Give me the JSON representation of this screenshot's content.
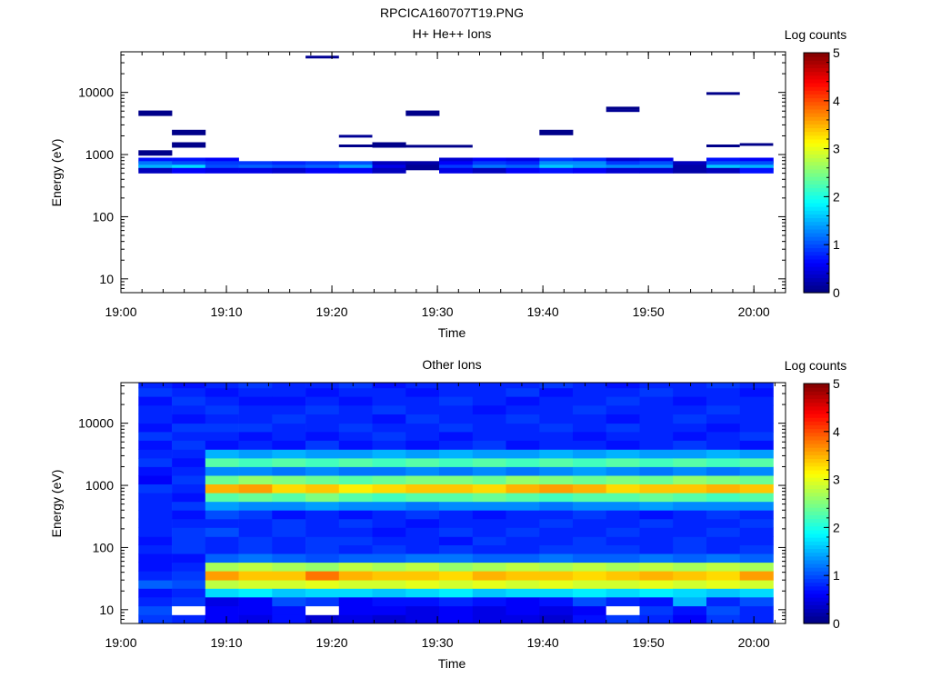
{
  "figure_title": "RPCICA160707T19.PNG",
  "chart_data": [
    {
      "type": "heatmap",
      "title": "H+ He++ Ions",
      "xlabel": "Time",
      "ylabel": "Energy (eV)",
      "x_tick_labels": [
        "19:00",
        "19:10",
        "19:20",
        "19:30",
        "19:40",
        "19:50",
        "20:00"
      ],
      "x_range": [
        "19:00",
        "20:03"
      ],
      "y_scale": "log",
      "y_tick_labels": [
        "10",
        "100",
        "1000",
        "10000"
      ],
      "y_range": [
        6,
        45000
      ],
      "colorbar": {
        "label": "Log counts",
        "range": [
          0,
          5
        ],
        "tick_labels": [
          "0",
          "1",
          "2",
          "3",
          "4",
          "5"
        ]
      },
      "time_bins": [
        "19:01:40",
        "19:04:50",
        "19:08:00",
        "19:11:10",
        "19:14:20",
        "19:17:30",
        "19:20:40",
        "19:23:50",
        "19:27:00",
        "19:30:10",
        "19:33:20",
        "19:36:30",
        "19:39:40",
        "19:42:50",
        "19:46:00",
        "19:49:10",
        "19:52:20",
        "19:55:30",
        "19:58:40"
      ],
      "rows": [
        {
          "e": 4700,
          "v": [
            0.05,
            null,
            null,
            null,
            null,
            null,
            null,
            null,
            0.05,
            null,
            null,
            null,
            null,
            null,
            null,
            null,
            null,
            null,
            null
          ]
        },
        {
          "e": 2300,
          "v": [
            null,
            0.05,
            null,
            null,
            null,
            null,
            null,
            null,
            null,
            null,
            null,
            null,
            0.05,
            null,
            null,
            null,
            null,
            null,
            null
          ]
        },
        {
          "e": 1450,
          "v": [
            null,
            0.05,
            null,
            null,
            null,
            null,
            null,
            0.05,
            null,
            null,
            null,
            null,
            null,
            null,
            null,
            null,
            null,
            null,
            null
          ]
        },
        {
          "e": 1080,
          "v": [
            0.05,
            null,
            null,
            null,
            null,
            null,
            null,
            null,
            null,
            null,
            null,
            null,
            null,
            null,
            null,
            null,
            null,
            null,
            null
          ]
        },
        {
          "e": 820,
          "v": [
            0.7,
            0.7,
            0.6,
            null,
            null,
            null,
            null,
            null,
            null,
            0.4,
            0.6,
            0.5,
            0.9,
            0.8,
            0.4,
            0.5,
            null,
            0.7,
            0.6
          ]
        },
        {
          "e": 720,
          "v": [
            1.2,
            1.0,
            0.9,
            0.9,
            0.8,
            0.9,
            1.0,
            0.3,
            0.2,
            0.6,
            0.9,
            0.8,
            1.3,
            1.3,
            0.9,
            1.0,
            0.3,
            1.0,
            1.0
          ]
        },
        {
          "e": 630,
          "v": [
            1.5,
            1.7,
            1.0,
            1.1,
            1.0,
            1.1,
            1.4,
            0.5,
            0.1,
            0.9,
            1.2,
            1.1,
            1.6,
            1.4,
            1.3,
            1.3,
            0.2,
            1.6,
            1.5
          ]
        },
        {
          "e": 560,
          "v": [
            0.3,
            0.6,
            0.5,
            0.5,
            0.4,
            0.6,
            0.6,
            0.3,
            null,
            0.5,
            0.3,
            0.6,
            0.7,
            0.6,
            0.4,
            0.4,
            0.2,
            0.3,
            0.7
          ]
        }
      ],
      "lines": [
        {
          "t0": "19:17:30",
          "t1": "19:20:40",
          "e": 37000,
          "v": 0.1
        },
        {
          "t0": "19:20:40",
          "t1": "19:23:50",
          "e": 1970,
          "v": 0.1
        },
        {
          "t0": "19:20:40",
          "t1": "19:23:50",
          "e": 1380,
          "v": 0.05
        },
        {
          "t0": "19:27:00",
          "t1": "19:33:20",
          "e": 1360,
          "v": 0.05
        },
        {
          "t0": "19:46:00",
          "t1": "19:49:10",
          "e": 5600,
          "v": 0.05
        },
        {
          "t0": "19:46:00",
          "t1": "19:49:10",
          "e": 5100,
          "v": 0.1
        },
        {
          "t0": "19:55:30",
          "t1": "19:58:40",
          "e": 9600,
          "v": 0.05
        },
        {
          "t0": "19:55:30",
          "t1": "19:58:40",
          "e": 1380,
          "v": 0.05
        },
        {
          "t0": "19:58:40",
          "t1": "20:01:50",
          "e": 1450,
          "v": 0.05
        }
      ]
    },
    {
      "type": "heatmap",
      "title": "Other Ions",
      "xlabel": "Time",
      "ylabel": "Energy (eV)",
      "x_tick_labels": [
        "19:00",
        "19:10",
        "19:20",
        "19:30",
        "19:40",
        "19:50",
        "20:00"
      ],
      "x_range": [
        "19:00",
        "20:03"
      ],
      "y_scale": "log",
      "y_tick_labels": [
        "10",
        "100",
        "1000",
        "10000"
      ],
      "y_range": [
        6,
        45000
      ],
      "colorbar": {
        "label": "Log counts",
        "range": [
          0,
          5
        ],
        "tick_labels": [
          "0",
          "1",
          "2",
          "3",
          "4",
          "5"
        ]
      },
      "time_bins": [
        "19:01:40",
        "19:04:50",
        "19:08:00",
        "19:11:10",
        "19:14:20",
        "19:17:30",
        "19:20:40",
        "19:23:50",
        "19:27:00",
        "19:30:10",
        "19:33:20",
        "19:36:30",
        "19:39:40",
        "19:42:50",
        "19:46:00",
        "19:49:10",
        "19:52:20",
        "19:55:30",
        "19:58:40"
      ],
      "energy_band_edges": [
        6,
        8.3,
        11.5,
        16,
        22,
        30,
        42,
        58,
        80,
        110,
        150,
        210,
        290,
        400,
        550,
        760,
        1050,
        1450,
        2000,
        2750,
        3800,
        5300,
        7300,
        10000,
        14000,
        19500,
        27000,
        37000,
        45000
      ],
      "matrix": [
        [
          0.9,
          1.0,
          0.8,
          0.7,
          1.1,
          0.8,
          0.7,
          0.7,
          0.8,
          0.7,
          0.8,
          0.8,
          0.8,
          0.8,
          0.8,
          0.9,
          0.6,
          0.7,
          0.9,
          0.8,
          0.7,
          0.9,
          0.7,
          0.8,
          0.8,
          0.7,
          0.9,
          0.8
        ],
        [
          0.8,
          null,
          0.9,
          0.8,
          1.0,
          0.9,
          0.8,
          0.7,
          0.9,
          0.9,
          0.9,
          0.8,
          0.7,
          0.9,
          0.7,
          0.8,
          0.9,
          0.8,
          0.7,
          0.8,
          0.9,
          0.8,
          0.9,
          0.7,
          0.8,
          0.9,
          0.8,
          0.7
        ],
        [
          0.6,
          0.6,
          0.5,
          1.7,
          2.8,
          3.6,
          2.7,
          1.1,
          0.8,
          0.8,
          1.0,
          0.8,
          1.0,
          1.4,
          2.3,
          3.5,
          2.4,
          1.3,
          2.3,
          1.5,
          0.7,
          0.8,
          0.9,
          0.8,
          0.9,
          0.8,
          0.7,
          0.8
        ],
        [
          0.5,
          0.6,
          0.6,
          1.8,
          2.9,
          3.4,
          2.8,
          1.2,
          0.9,
          0.9,
          0.8,
          0.8,
          0.9,
          1.3,
          2.4,
          3.6,
          2.6,
          1.3,
          2.2,
          1.4,
          0.8,
          0.7,
          0.9,
          0.8,
          0.8,
          0.7,
          0.8,
          0.9
        ],
        [
          0.7,
          0.7,
          1.0,
          1.6,
          2.9,
          3.4,
          2.7,
          1.1,
          0.8,
          0.8,
          0.9,
          0.9,
          0.7,
          1.3,
          2.3,
          3.3,
          2.5,
          1.2,
          2.3,
          1.5,
          0.7,
          0.8,
          0.8,
          0.9,
          0.8,
          0.7,
          0.8,
          0.8
        ],
        [
          0.4,
          null,
          0.9,
          1.7,
          3.0,
          3.8,
          2.6,
          1.0,
          0.9,
          0.9,
          0.8,
          0.8,
          0.8,
          1.4,
          2.5,
          3.4,
          2.4,
          1.3,
          2.2,
          1.4,
          0.9,
          0.7,
          0.8,
          0.8,
          0.9,
          0.8,
          0.7,
          0.8
        ],
        [
          0.5,
          0.6,
          0.6,
          1.7,
          2.9,
          3.5,
          2.8,
          1.1,
          0.8,
          0.9,
          0.8,
          0.9,
          0.7,
          1.3,
          2.3,
          3.2,
          2.3,
          1.2,
          2.3,
          1.4,
          0.7,
          0.8,
          0.9,
          0.8,
          0.8,
          0.7,
          0.8,
          0.9
        ],
        [
          0.4,
          0.6,
          0.7,
          1.6,
          2.9,
          3.4,
          2.7,
          1.1,
          0.9,
          0.8,
          0.7,
          0.8,
          0.8,
          1.3,
          2.2,
          3.3,
          2.4,
          1.2,
          2.2,
          1.5,
          0.8,
          0.9,
          0.8,
          0.7,
          0.9,
          0.8,
          0.8,
          0.7
        ],
        [
          0.5,
          0.5,
          0.7,
          1.7,
          3.0,
          3.4,
          2.8,
          1.2,
          0.8,
          0.8,
          0.8,
          0.7,
          0.9,
          1.2,
          2.3,
          3.4,
          2.5,
          1.3,
          2.3,
          1.4,
          0.7,
          0.8,
          0.8,
          0.9,
          0.8,
          0.8,
          0.7,
          0.8
        ],
        [
          0.6,
          0.6,
          0.8,
          1.8,
          2.9,
          3.3,
          2.6,
          1.2,
          0.9,
          0.7,
          0.9,
          0.8,
          0.8,
          1.3,
          2.3,
          3.4,
          2.5,
          1.2,
          2.2,
          1.5,
          0.8,
          0.7,
          0.9,
          0.8,
          0.8,
          0.9,
          0.8,
          0.8
        ],
        [
          0.5,
          0.5,
          0.7,
          1.6,
          3.0,
          3.5,
          2.7,
          1.1,
          0.8,
          0.9,
          0.8,
          0.8,
          0.7,
          1.3,
          2.4,
          3.3,
          2.4,
          1.3,
          2.3,
          1.4,
          0.9,
          0.8,
          0.8,
          0.8,
          0.7,
          0.8,
          0.8,
          0.8
        ],
        [
          0.5,
          0.6,
          0.6,
          1.7,
          2.9,
          3.4,
          2.8,
          1.1,
          0.8,
          0.8,
          0.9,
          0.8,
          0.8,
          1.3,
          2.3,
          3.5,
          2.6,
          1.2,
          2.2,
          1.4,
          0.7,
          0.8,
          0.8,
          0.9,
          0.8,
          0.7,
          0.9,
          0.8
        ],
        [
          0.4,
          0.5,
          0.7,
          1.7,
          3.0,
          3.4,
          2.7,
          1.2,
          0.9,
          0.8,
          0.8,
          0.9,
          0.8,
          1.2,
          2.2,
          3.6,
          2.5,
          1.3,
          2.3,
          1.5,
          0.8,
          0.8,
          0.9,
          0.8,
          0.8,
          0.8,
          0.7,
          0.9
        ],
        [
          0.7,
          0.6,
          1.0,
          1.8,
          2.9,
          3.3,
          2.8,
          1.1,
          0.9,
          0.9,
          0.8,
          0.8,
          0.9,
          1.3,
          2.3,
          3.5,
          2.4,
          1.4,
          2.2,
          1.4,
          0.8,
          0.7,
          0.8,
          0.8,
          0.9,
          0.8,
          0.8,
          0.8
        ],
        [
          0.9,
          null,
          0.8,
          1.7,
          2.9,
          3.4,
          2.7,
          1.1,
          0.9,
          0.8,
          0.9,
          0.8,
          0.8,
          1.3,
          2.3,
          3.3,
          2.5,
          1.3,
          2.3,
          1.5,
          0.7,
          0.8,
          0.9,
          0.7,
          0.8,
          0.9,
          0.8,
          0.7
        ],
        [
          0.8,
          0.9,
          0.7,
          1.8,
          3.0,
          3.5,
          2.8,
          1.2,
          0.8,
          0.8,
          0.8,
          0.9,
          0.7,
          1.4,
          2.4,
          3.4,
          2.4,
          1.2,
          2.2,
          1.4,
          0.8,
          0.8,
          0.8,
          0.8,
          0.8,
          0.8,
          0.9,
          0.8
        ],
        [
          0.6,
          0.7,
          1.5,
          1.7,
          2.9,
          3.4,
          2.7,
          1.1,
          0.9,
          0.9,
          0.8,
          0.8,
          0.8,
          1.3,
          2.3,
          3.4,
          2.6,
          1.3,
          2.3,
          1.4,
          0.9,
          0.7,
          0.8,
          0.9,
          0.8,
          0.7,
          0.8,
          0.8
        ],
        [
          0.9,
          1.0,
          0.8,
          1.6,
          3.0,
          3.3,
          2.8,
          1.2,
          0.8,
          0.8,
          0.9,
          0.8,
          0.9,
          1.3,
          2.2,
          3.5,
          2.5,
          1.2,
          2.2,
          1.5,
          0.8,
          0.8,
          0.7,
          0.8,
          0.9,
          0.8,
          0.8,
          0.9
        ],
        [
          0.8,
          0.8,
          1.0,
          1.7,
          2.9,
          3.6,
          2.7,
          1.1,
          0.9,
          0.8,
          0.8,
          0.9,
          0.8,
          1.3,
          2.3,
          3.4,
          2.4,
          1.3,
          2.3,
          1.4,
          0.7,
          0.9,
          0.8,
          0.8,
          0.8,
          0.8,
          0.7,
          0.8
        ]
      ]
    }
  ]
}
